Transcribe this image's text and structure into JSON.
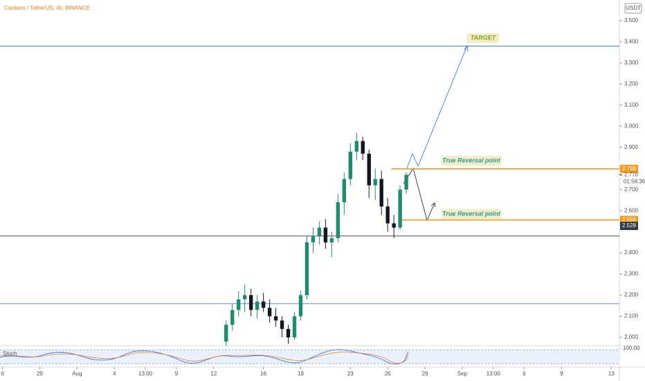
{
  "chart_data": {
    "type": "candlestick",
    "title": "Cardano / TetherUS, 4h, BINANCE",
    "currency": "USDT",
    "oscillator_label": "Stoch",
    "oscillator_top": "100.00",
    "up_color": "#1e8c6e",
    "down_color": "#131722",
    "xlim": [
      -0.2,
      49.65
    ],
    "ylim": [
      1.964,
      3.598
    ],
    "xticks": [
      {
        "value": 0,
        "label": "6"
      },
      {
        "value": 3,
        "label": "29"
      },
      {
        "value": 6,
        "label": "Aug"
      },
      {
        "value": 9,
        "label": "4"
      },
      {
        "value": 11.5,
        "label": "13:00"
      },
      {
        "value": 14,
        "label": "9"
      },
      {
        "value": 17,
        "label": "12"
      },
      {
        "value": 21,
        "label": "16"
      },
      {
        "value": 24,
        "label": "19"
      },
      {
        "value": 28,
        "label": "23"
      },
      {
        "value": 31,
        "label": "26"
      },
      {
        "value": 34,
        "label": "29"
      },
      {
        "value": 37,
        "label": "Sep"
      },
      {
        "value": 39.5,
        "label": "13:00"
      },
      {
        "value": 42,
        "label": "6"
      },
      {
        "value": 45,
        "label": "9"
      },
      {
        "value": 49,
        "label": "13"
      }
    ],
    "yticks": [
      {
        "value": 3.5,
        "label": "3.500"
      },
      {
        "value": 3.4,
        "label": "3.400"
      },
      {
        "value": 3.3,
        "label": "3.300"
      },
      {
        "value": 3.2,
        "label": "3.200"
      },
      {
        "value": 3.1,
        "label": "3.100"
      },
      {
        "value": 3.0,
        "label": "3.000"
      },
      {
        "value": 2.9,
        "label": "2.900"
      },
      {
        "value": 2.7,
        "label": "2.700"
      },
      {
        "value": 2.6,
        "label": "2.600"
      },
      {
        "value": 2.4,
        "label": "2.400"
      },
      {
        "value": 2.3,
        "label": "2.300"
      },
      {
        "value": 2.2,
        "label": "2.200"
      },
      {
        "value": 2.1,
        "label": "2.100"
      },
      {
        "value": 2.0,
        "label": "2.000"
      }
    ],
    "series": {
      "x": [
        18,
        18.5,
        19,
        19.5,
        20,
        20.5,
        21,
        21.5,
        22,
        22.5,
        23,
        23.5,
        24,
        24.5,
        25,
        25.5,
        26,
        26.5,
        27,
        27.5,
        28,
        28.5,
        29,
        29.5,
        30,
        30.5,
        31,
        31.5,
        32,
        32.5
      ],
      "open": [
        1.98,
        2.06,
        2.13,
        2.18,
        2.2,
        2.13,
        2.17,
        2.14,
        2.1,
        2.08,
        2.04,
        2.0,
        2.1,
        2.2,
        2.45,
        2.48,
        2.52,
        2.45,
        2.47,
        2.64,
        2.75,
        2.88,
        2.93,
        2.87,
        2.72,
        2.75,
        2.62,
        2.54,
        2.52,
        2.7
      ],
      "high": [
        2.08,
        2.16,
        2.22,
        2.25,
        2.23,
        2.2,
        2.21,
        2.18,
        2.14,
        2.1,
        2.06,
        2.12,
        2.22,
        2.48,
        2.52,
        2.55,
        2.56,
        2.5,
        2.68,
        2.78,
        2.92,
        2.97,
        2.95,
        2.89,
        2.8,
        2.79,
        2.66,
        2.58,
        2.72,
        2.78
      ],
      "low": [
        1.96,
        2.03,
        2.1,
        2.12,
        2.1,
        2.09,
        2.12,
        2.07,
        2.05,
        2.0,
        1.97,
        1.99,
        2.08,
        2.18,
        2.4,
        2.44,
        2.42,
        2.38,
        2.45,
        2.58,
        2.72,
        2.84,
        2.84,
        2.66,
        2.65,
        2.58,
        2.5,
        2.47,
        2.51,
        2.68
      ],
      "close": [
        2.06,
        2.13,
        2.18,
        2.2,
        2.13,
        2.17,
        2.14,
        2.1,
        2.08,
        2.04,
        2.0,
        2.1,
        2.2,
        2.45,
        2.48,
        2.52,
        2.45,
        2.47,
        2.64,
        2.75,
        2.88,
        2.93,
        2.87,
        2.72,
        2.75,
        2.62,
        2.54,
        2.52,
        2.7,
        2.77
      ]
    },
    "hlines": [
      {
        "value": 3.38,
        "color": "#2962ff"
      },
      {
        "value": 2.48,
        "color": "#131722"
      },
      {
        "value": 2.16,
        "color": "#2962ff"
      },
      {
        "value": 2.798,
        "color": "#f59b1c",
        "from": 31.3
      },
      {
        "value": 2.556,
        "color": "#f59b1c",
        "from": 32.1
      }
    ],
    "price_labels": [
      {
        "value": 2.798,
        "label": "2.798",
        "color": "#f59b1c"
      },
      {
        "value": 2.556,
        "label": "2.556",
        "color": "#f59b1c"
      },
      {
        "value": 2.528,
        "label": "2.528",
        "color": "#363a45"
      }
    ],
    "last_price": {
      "value": 2.77,
      "label": "2.770",
      "countdown": "01:58:36"
    },
    "annotations": [
      {
        "text": "TARGET",
        "color": "#7aa62a"
      },
      {
        "text": "True Reversal point",
        "color": "#1f9ea0"
      },
      {
        "text": "True Reversal point",
        "color": "#1f9ea0"
      }
    ]
  }
}
